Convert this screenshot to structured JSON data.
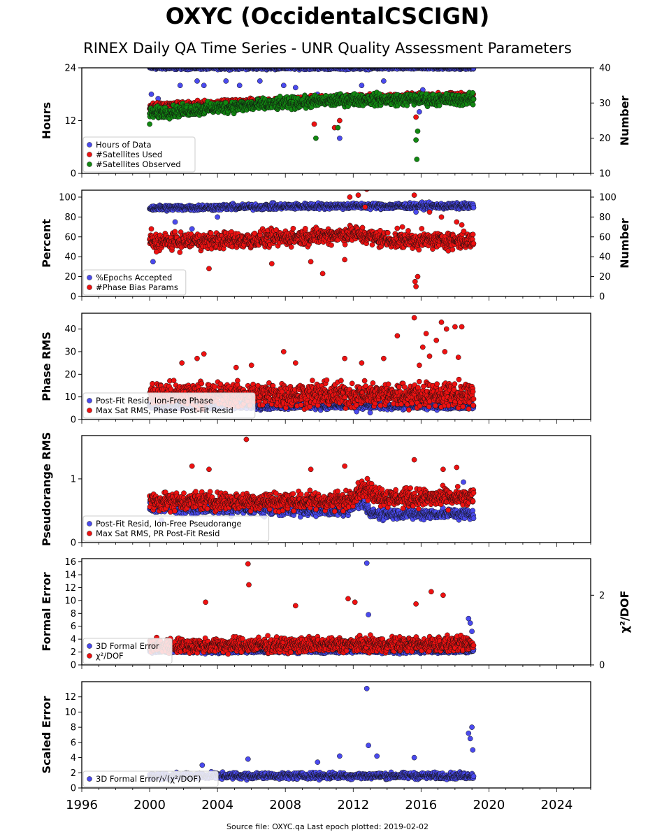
{
  "page": {
    "title": "OXYC (OccidentalCSCIGN)",
    "subtitle": "RINEX Daily QA Time Series - UNR Quality Assessment Parameters",
    "footer": "Source file: OXYC.qa Last epoch plotted: 2019-02-02"
  },
  "colors": {
    "blue": "#4a4aee",
    "red": "#ee1111",
    "green": "#118811"
  },
  "chart_data": [
    {
      "type": "scatter",
      "ylabel": "Hours",
      "ylabel_right": "Number",
      "xlim": [
        1996,
        2026
      ],
      "ylim": [
        0,
        24
      ],
      "ylim_right": [
        10,
        40
      ],
      "yticks": [
        0,
        12,
        24
      ],
      "yticks_right": [
        10,
        20,
        30,
        40
      ],
      "legend_position": "lower-left",
      "series": [
        {
          "name": "Hours of Data",
          "color": "blue",
          "axis": "left",
          "base": [
            [
              2000,
              24
            ],
            [
              2019.1,
              24
            ]
          ],
          "jitter": 0.3,
          "outliers": [
            [
              2000.1,
              18
            ],
            [
              2000.5,
              17
            ],
            [
              2001.8,
              20
            ],
            [
              2002.8,
              21
            ],
            [
              2003.2,
              20
            ],
            [
              2004.5,
              21
            ],
            [
              2005.3,
              20
            ],
            [
              2006.5,
              21
            ],
            [
              2007.9,
              20
            ],
            [
              2008.6,
              19.5
            ],
            [
              2009.9,
              18
            ],
            [
              2011.2,
              8
            ],
            [
              2012.5,
              20
            ],
            [
              2013.8,
              21
            ],
            [
              2015.7,
              18
            ],
            [
              2015.9,
              14
            ],
            [
              2016.1,
              19
            ]
          ]
        },
        {
          "name": "#Satellites Used",
          "color": "red",
          "axis": "right",
          "base": [
            [
              2000,
              29
            ],
            [
              2005,
              30
            ],
            [
              2012,
              31.5
            ],
            [
              2019.1,
              32
            ]
          ],
          "jitter": 0.8,
          "outliers": [
            [
              2009.7,
              24
            ],
            [
              2010.9,
              23
            ],
            [
              2011.2,
              25
            ],
            [
              2015.7,
              26
            ]
          ]
        },
        {
          "name": "#Satellites Observed",
          "color": "green",
          "axis": "right",
          "base": [
            [
              2000,
              27
            ],
            [
              2005,
              29
            ],
            [
              2012,
              31
            ],
            [
              2019.1,
              31
            ]
          ],
          "jitter": 1.4,
          "outliers": [
            [
              2000,
              24
            ],
            [
              2009.8,
              20
            ],
            [
              2011.1,
              23
            ],
            [
              2015.7,
              19.5
            ],
            [
              2015.75,
              14
            ],
            [
              2015.8,
              22
            ]
          ]
        }
      ]
    },
    {
      "type": "scatter",
      "ylabel": "Percent",
      "ylabel_right": "Number",
      "xlim": [
        1996,
        2026
      ],
      "ylim": [
        0,
        107
      ],
      "ylim_right": [
        0,
        107
      ],
      "yticks": [
        0,
        20,
        40,
        60,
        80,
        100
      ],
      "yticks_right": [
        0,
        20,
        40,
        60,
        80,
        100
      ],
      "legend_position": "lower-left",
      "series": [
        {
          "name": "%Epochs Accepted",
          "color": "blue",
          "axis": "left",
          "base": [
            [
              2000,
              89
            ],
            [
              2010,
              91
            ],
            [
              2019.1,
              91
            ]
          ],
          "jitter": 2.5,
          "outliers": [
            [
              2000.2,
              35
            ],
            [
              2001.5,
              75
            ],
            [
              2002.5,
              68
            ],
            [
              2004,
              80
            ],
            [
              2015.7,
              85
            ]
          ]
        },
        {
          "name": "#Phase Bias Params",
          "color": "red",
          "axis": "left",
          "base": [
            [
              2000,
              55
            ],
            [
              2006,
              57
            ],
            [
              2012,
              63
            ],
            [
              2014,
              57
            ],
            [
              2019.1,
              56
            ]
          ],
          "jitter": 7,
          "outliers": [
            [
              2000.1,
              68
            ],
            [
              2000.4,
              45
            ],
            [
              2003.5,
              28
            ],
            [
              2007.2,
              33
            ],
            [
              2009.5,
              35
            ],
            [
              2010.2,
              23
            ],
            [
              2011.5,
              37
            ],
            [
              2011.8,
              100
            ],
            [
              2012.3,
              102
            ],
            [
              2012.7,
              90
            ],
            [
              2012.8,
              108
            ],
            [
              2014.9,
              70
            ],
            [
              2015.6,
              102
            ],
            [
              2015.65,
              15
            ],
            [
              2015.7,
              10
            ],
            [
              2015.8,
              20
            ],
            [
              2016.5,
              85
            ],
            [
              2017.2,
              80
            ],
            [
              2018.1,
              75
            ],
            [
              2018.4,
              72
            ]
          ]
        }
      ]
    },
    {
      "type": "scatter",
      "ylabel": "Phase RMS",
      "xlim": [
        1996,
        2026
      ],
      "ylim": [
        0,
        47
      ],
      "yticks": [
        0,
        10,
        20,
        30,
        40
      ],
      "legend_position": "lower-left",
      "series": [
        {
          "name": "Post-Fit Resid, Ion-Free Phase",
          "color": "blue",
          "axis": "left",
          "base": [
            [
              2000,
              6
            ],
            [
              2019.1,
              6
            ]
          ],
          "jitter": 1.2,
          "outliers": [
            [
              2012.2,
              3.5
            ],
            [
              2013,
              3
            ]
          ]
        },
        {
          "name": "Max Sat RMS, Phase Post-Fit Resid",
          "color": "red",
          "axis": "left",
          "base": [
            [
              2000,
              11
            ],
            [
              2019.1,
              11
            ]
          ],
          "jitter": 4.5,
          "outliers": [
            [
              2001.9,
              25
            ],
            [
              2002.8,
              27
            ],
            [
              2003.2,
              29
            ],
            [
              2005.1,
              23
            ],
            [
              2006,
              24
            ],
            [
              2007.9,
              30
            ],
            [
              2008.6,
              25
            ],
            [
              2011.5,
              27
            ],
            [
              2012.5,
              25
            ],
            [
              2013.8,
              27
            ],
            [
              2014.6,
              37
            ],
            [
              2015.6,
              45
            ],
            [
              2015.9,
              24
            ],
            [
              2016.1,
              32
            ],
            [
              2016.3,
              38
            ],
            [
              2016.5,
              28
            ],
            [
              2016.9,
              35
            ],
            [
              2017.2,
              43
            ],
            [
              2017.5,
              40
            ],
            [
              2018,
              41
            ],
            [
              2018.4,
              41
            ],
            [
              2018.2,
              27.5
            ],
            [
              2017.4,
              30
            ]
          ]
        }
      ]
    },
    {
      "type": "scatter",
      "ylabel": "Pseudorange RMS",
      "xlim": [
        1996,
        2026
      ],
      "ylim": [
        0,
        1.68
      ],
      "yticks": [
        0,
        1
      ],
      "legend_position": "lower-left",
      "series": [
        {
          "name": "Post-Fit Resid, Ion-Free Pseudorange",
          "color": "blue",
          "axis": "left",
          "base": [
            [
              2000,
              0.55
            ],
            [
              2011.5,
              0.5
            ],
            [
              2012.5,
              0.65
            ],
            [
              2013,
              0.45
            ],
            [
              2019.1,
              0.45
            ]
          ],
          "jitter": 0.07,
          "outliers": [
            [
              2000.7,
              0.35
            ],
            [
              2018.5,
              0.95
            ]
          ]
        },
        {
          "name": "Max Sat RMS, PR Post-Fit Resid",
          "color": "red",
          "axis": "left",
          "base": [
            [
              2000,
              0.65
            ],
            [
              2011.5,
              0.65
            ],
            [
              2012.5,
              0.85
            ],
            [
              2014,
              0.7
            ],
            [
              2019.1,
              0.7
            ]
          ],
          "jitter": 0.12,
          "outliers": [
            [
              2002.5,
              1.2
            ],
            [
              2003.5,
              1.15
            ],
            [
              2005.7,
              1.62
            ],
            [
              2009.5,
              1.15
            ],
            [
              2011.5,
              1.2
            ],
            [
              2015.6,
              1.3
            ],
            [
              2017.3,
              1.15
            ],
            [
              2018.1,
              1.18
            ]
          ]
        }
      ]
    },
    {
      "type": "scatter",
      "ylabel": "Formal Error",
      "ylabel_right": "χ²/DOF",
      "xlim": [
        1996,
        2026
      ],
      "ylim": [
        0,
        16.5
      ],
      "ylim_right": [
        0,
        3.05
      ],
      "yticks": [
        0,
        2,
        4,
        6,
        8,
        10,
        12,
        14,
        16
      ],
      "yticks_right": [
        0,
        2
      ],
      "legend_position": "lower-left",
      "series": [
        {
          "name": "3D Formal Error",
          "color": "blue",
          "axis": "left",
          "base": [
            [
              2000,
              2.2
            ],
            [
              2019.1,
              2.2
            ]
          ],
          "jitter": 0.3,
          "outliers": [
            [
              2012.8,
              15.8
            ],
            [
              2012.9,
              7.8
            ],
            [
              2018.8,
              7.2
            ],
            [
              2018.9,
              6.5
            ],
            [
              2019,
              5.2
            ]
          ]
        },
        {
          "name": "χ²/DOF",
          "color": "red",
          "axis": "right",
          "base": [
            [
              2000,
              0.55
            ],
            [
              2019.1,
              0.6
            ]
          ],
          "jitter": 0.18,
          "outliers": [
            [
              2003.3,
              1.8
            ],
            [
              2005.8,
              2.9
            ],
            [
              2005.85,
              2.3
            ],
            [
              2008.6,
              1.7
            ],
            [
              2011.7,
              1.9
            ],
            [
              2012.1,
              1.8
            ],
            [
              2016.6,
              2.1
            ],
            [
              2017.3,
              2.0
            ],
            [
              2015.7,
              1.75
            ]
          ]
        }
      ]
    },
    {
      "type": "scatter",
      "ylabel": "Scaled Error",
      "xlim": [
        1996,
        2026
      ],
      "ylim": [
        0,
        14
      ],
      "yticks": [
        0,
        2,
        4,
        6,
        8,
        10,
        12
      ],
      "xticks": [
        1996,
        2000,
        2004,
        2008,
        2012,
        2016,
        2020,
        2024
      ],
      "legend_position": "lower-left",
      "series": [
        {
          "name": "3D Formal Error/√(χ²/DOF)",
          "color": "blue",
          "axis": "left",
          "base": [
            [
              2000,
              1.6
            ],
            [
              2019.1,
              1.6
            ]
          ],
          "jitter": 0.35,
          "outliers": [
            [
              2003.1,
              3
            ],
            [
              2005.8,
              3.8
            ],
            [
              2009.9,
              3.4
            ],
            [
              2011.2,
              4.2
            ],
            [
              2012.8,
              13.1
            ],
            [
              2012.9,
              5.6
            ],
            [
              2013.4,
              4.2
            ],
            [
              2015.6,
              4
            ],
            [
              2018.8,
              7.2
            ],
            [
              2018.9,
              6.5
            ],
            [
              2019,
              8
            ],
            [
              2019.05,
              5
            ]
          ]
        }
      ]
    }
  ]
}
